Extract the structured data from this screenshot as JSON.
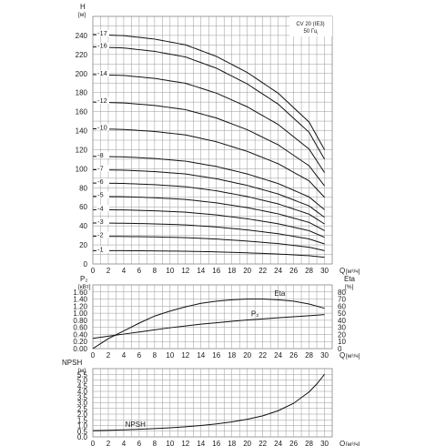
{
  "chart_data": [
    {
      "type": "line",
      "y_title": "H",
      "y_unit": "[м]",
      "x_title": "Q",
      "x_unit": "[м³/ч]",
      "xlim": [
        0,
        31
      ],
      "ylim": [
        0,
        260
      ],
      "x_ticks": [
        "0",
        "2",
        "4",
        "6",
        "8",
        "10",
        "12",
        "14",
        "16",
        "18",
        "20",
        "22",
        "24",
        "26",
        "28",
        "30"
      ],
      "y_ticks": [
        "0",
        "20",
        "40",
        "60",
        "80",
        "100",
        "120",
        "140",
        "160",
        "180",
        "200",
        "220",
        "240"
      ],
      "info_line1": "CV 20 (IE3)",
      "info_line2": "50 Гц",
      "series": [
        {
          "name": "-17",
          "shutoff": 241,
          "end": 120
        },
        {
          "name": "-16",
          "shutoff": 228,
          "end": 110
        },
        {
          "name": "-14",
          "shutoff": 199,
          "end": 96
        },
        {
          "name": "-12",
          "shutoff": 170,
          "end": 82
        },
        {
          "name": "-10",
          "shutoff": 142,
          "end": 70
        },
        {
          "name": "-8",
          "shutoff": 113,
          "end": 57
        },
        {
          "name": "-7",
          "shutoff": 99,
          "end": 49
        },
        {
          "name": "-6",
          "shutoff": 85,
          "end": 42
        },
        {
          "name": "-5",
          "shutoff": 71,
          "end": 35
        },
        {
          "name": "-4",
          "shutoff": 57,
          "end": 28
        },
        {
          "name": "-3",
          "shutoff": 43,
          "end": 21
        },
        {
          "name": "-2",
          "shutoff": 29,
          "end": 14
        },
        {
          "name": "-1",
          "shutoff": 14,
          "end": 7
        }
      ],
      "x_shape": [
        0,
        4,
        8,
        12,
        16,
        20,
        24,
        28,
        30
      ],
      "y_shape": [
        1.0,
        0.995,
        0.98,
        0.955,
        0.905,
        0.835,
        0.745,
        0.62,
        0.5
      ]
    },
    {
      "type": "line",
      "y_left_title": "P₂",
      "y_left_unit": "[кВт]",
      "y_right_title": "Eta",
      "y_right_unit": "[%]",
      "x_title": "Q",
      "x_unit": "[м³/ч]",
      "xlim": [
        0,
        31
      ],
      "ylim_left": [
        0,
        1.8
      ],
      "ylim_right": [
        0,
        90
      ],
      "y_left_ticks": [
        "0.00",
        "0.20",
        "0.40",
        "0.60",
        "0.80",
        "1.00",
        "1.20",
        "1.40",
        "1.60"
      ],
      "y_right_ticks": [
        "0",
        "10",
        "20",
        "30",
        "40",
        "50",
        "60",
        "70",
        "80"
      ],
      "x_ticks": [
        "0",
        "2",
        "4",
        "6",
        "8",
        "10",
        "12",
        "14",
        "16",
        "18",
        "20",
        "22",
        "24",
        "26",
        "28",
        "30"
      ],
      "series": [
        {
          "name": "Eta",
          "axis": "right",
          "x": [
            0,
            2,
            4,
            6,
            8,
            10,
            12,
            14,
            16,
            18,
            20,
            22,
            24,
            26,
            28,
            30
          ],
          "y": [
            0,
            14,
            25,
            36,
            46,
            53,
            59,
            64,
            67,
            69,
            70,
            70,
            69,
            67,
            63,
            57
          ]
        },
        {
          "name": "P₂",
          "axis": "left",
          "x": [
            0,
            2,
            4,
            6,
            8,
            10,
            12,
            14,
            16,
            18,
            20,
            22,
            24,
            26,
            28,
            30
          ],
          "y": [
            0.29,
            0.35,
            0.41,
            0.47,
            0.53,
            0.59,
            0.64,
            0.69,
            0.73,
            0.77,
            0.81,
            0.84,
            0.87,
            0.9,
            0.93,
            0.96
          ]
        }
      ]
    },
    {
      "type": "line",
      "y_title": "NPSH",
      "y_unit": "[м]",
      "x_title": "Q",
      "x_unit": "[м³/ч]",
      "xlim": [
        0,
        31
      ],
      "ylim": [
        0,
        6
      ],
      "y_ticks": [
        "0.0",
        "0.5",
        "1.0",
        "1.5",
        "2.0",
        "2.5",
        "3.0",
        "3.5",
        "4.0",
        "4.5",
        "5.0",
        "5.5"
      ],
      "x_ticks": [
        "0",
        "2",
        "4",
        "6",
        "8",
        "10",
        "12",
        "14",
        "16",
        "18",
        "20",
        "22",
        "24",
        "26",
        "28",
        "30"
      ],
      "series": [
        {
          "name": "NPSH",
          "x": [
            0,
            2,
            4,
            6,
            8,
            10,
            12,
            14,
            16,
            18,
            20,
            22,
            24,
            26,
            28,
            29,
            30
          ],
          "y": [
            0.55,
            0.58,
            0.62,
            0.67,
            0.73,
            0.8,
            0.89,
            1.0,
            1.14,
            1.32,
            1.55,
            1.85,
            2.3,
            2.95,
            3.95,
            4.65,
            5.5
          ]
        }
      ]
    }
  ]
}
